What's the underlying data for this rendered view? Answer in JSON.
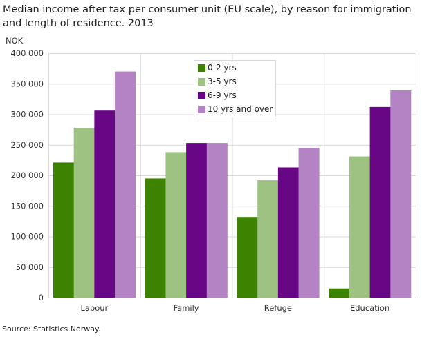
{
  "chart_data": {
    "type": "bar",
    "title": "Median income after tax per consumer unit (EU scale), by reason for immigration and length of residence. 2013",
    "ylabel": "NOK",
    "xlabel": "",
    "ylim": [
      0,
      400000
    ],
    "yticks": [
      0,
      50000,
      100000,
      150000,
      200000,
      250000,
      300000,
      350000,
      400000
    ],
    "ytick_labels": [
      "0",
      "50 000",
      "100 000",
      "150 000",
      "200 000",
      "250 000",
      "300 000",
      "350 000",
      "400 000"
    ],
    "categories": [
      "Labour",
      "Family",
      "Refuge",
      "Education"
    ],
    "series": [
      {
        "name": "0-2 yrs",
        "color": "#3d8200",
        "values": [
          221000,
          195000,
          132000,
          15000
        ]
      },
      {
        "name": "3-5 yrs",
        "color": "#9ec281",
        "values": [
          278000,
          238000,
          192000,
          231000
        ]
      },
      {
        "name": "6-9 yrs",
        "color": "#670785",
        "values": [
          306000,
          253000,
          213000,
          312000
        ]
      },
      {
        "name": "10 yrs and over",
        "color": "#b383c3",
        "values": [
          370000,
          253000,
          245000,
          339000
        ]
      }
    ],
    "grid": true,
    "legend_position": "top-center"
  },
  "source": "Source: Statistics Norway."
}
